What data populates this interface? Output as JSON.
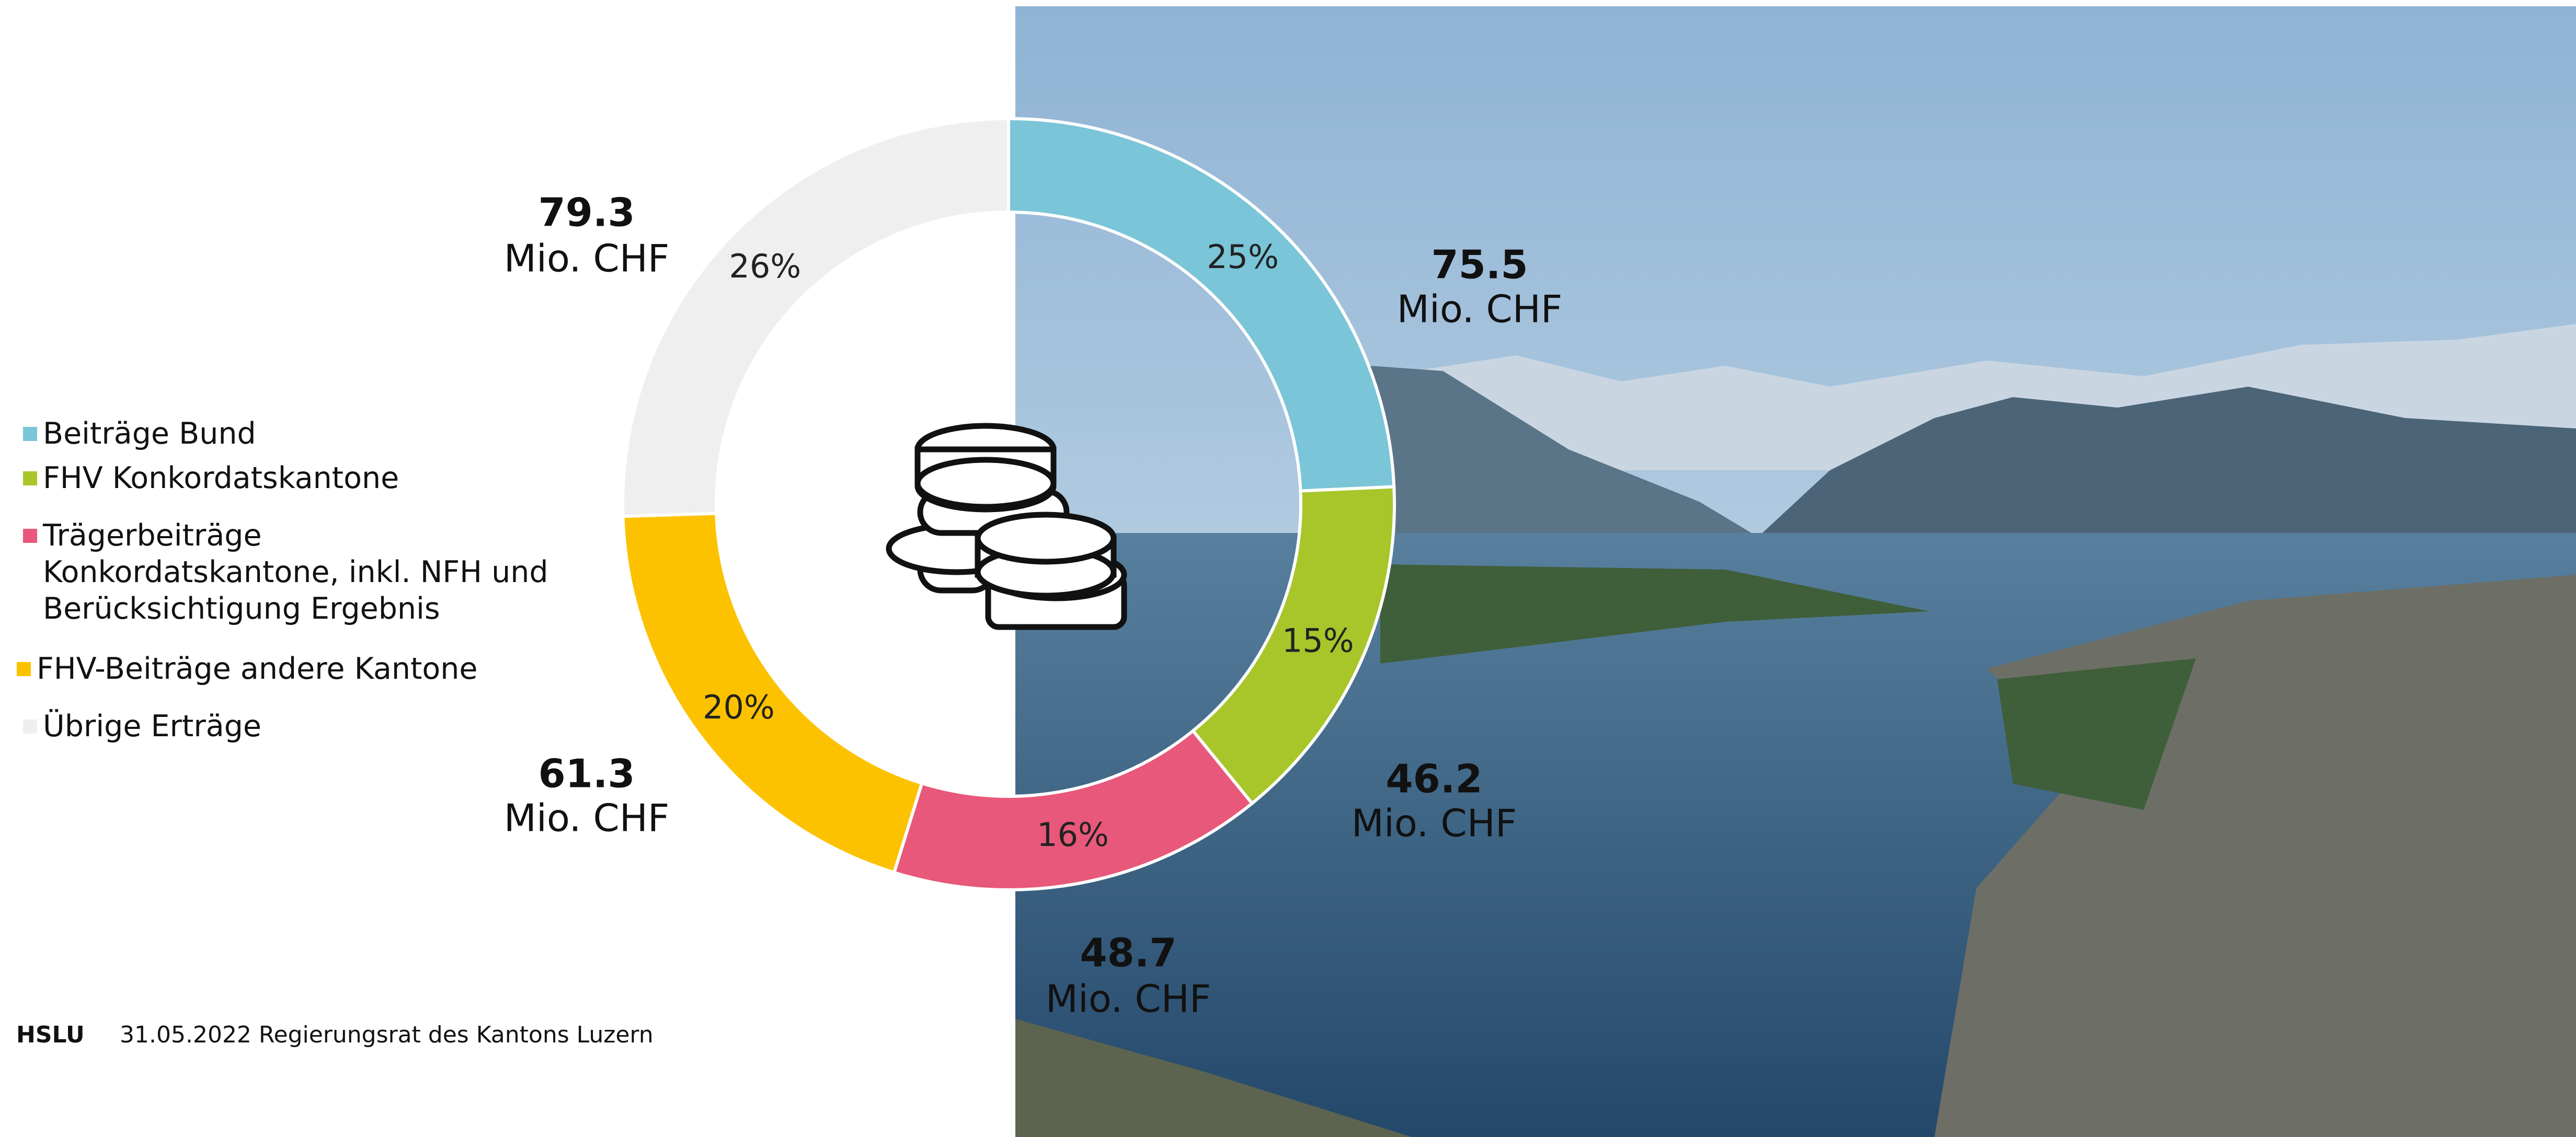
{
  "chart_data": {
    "type": "donut",
    "series": [
      {
        "name": "Beiträge Bund",
        "color": "#7ac5d8",
        "value": 75.5,
        "percent_label": "25%"
      },
      {
        "name": "FHV Konkordatskantone",
        "color": "#a8c52a",
        "value": 46.2,
        "percent_label": "15%"
      },
      {
        "name": "Trägerbeiträge\nKonkordatskantone, inkl. NFH und\nBerücksichtigung Ergebnis",
        "color": "#e8587a",
        "value": 48.7,
        "percent_label": "16%"
      },
      {
        "name": "FHV-Beiträge andere Kantone",
        "color": "#fcc200",
        "value": 61.3,
        "percent_label": "20%"
      },
      {
        "name": "Übrige Erträge",
        "color": "#efefef",
        "value": 79.3,
        "percent_label": "26%"
      }
    ],
    "unit": "Mio. CHF"
  },
  "footer": {
    "logo": "HSLU",
    "text": "31.05.2022 Regierungsrat des Kantons Luzern"
  }
}
